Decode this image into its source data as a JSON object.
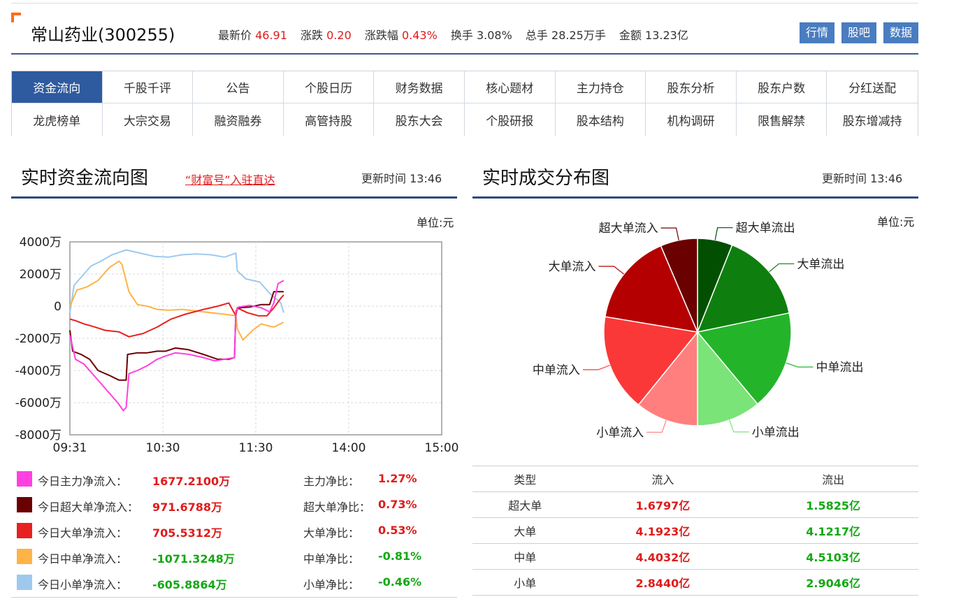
{
  "header": {
    "stock_name": "常山药业(300255)",
    "quotes": [
      {
        "label": "最新价",
        "value": "46.91",
        "color": "red"
      },
      {
        "label": "涨跌",
        "value": "0.20",
        "color": "red"
      },
      {
        "label": "涨跌幅",
        "value": "0.43%",
        "color": "red"
      },
      {
        "label": "换手",
        "value": "3.08%",
        "color": "plain"
      },
      {
        "label": "总手",
        "value": "28.25万手",
        "color": "plain"
      },
      {
        "label": "金额",
        "value": "13.23亿",
        "color": "plain"
      }
    ],
    "buttons": [
      "行情",
      "股吧",
      "数据"
    ]
  },
  "nav": {
    "items": [
      "资金流向",
      "千股千评",
      "公告",
      "个股日历",
      "财务数据",
      "核心题材",
      "主力持仓",
      "股东分析",
      "股东户数",
      "分红送配",
      "龙虎榜单",
      "大宗交易",
      "融资融券",
      "高管持股",
      "股东大会",
      "个股研报",
      "股本结构",
      "机构调研",
      "限售解禁",
      "股东增减持"
    ],
    "active_index": 0
  },
  "flow_section": {
    "title": "实时资金流向图",
    "link": "“财富号”入驻直达",
    "update_label": "更新时间",
    "update_time": "13:46",
    "unit": "单位:元"
  },
  "dist_section": {
    "title": "实时成交分布图",
    "update_label": "更新时间",
    "update_time": "13:46",
    "unit": "单位:元"
  },
  "colors": {
    "main": "#ff40e0",
    "super": "#6b0000",
    "large": "#e82020",
    "medium": "#ffb347",
    "small": "#9ec9ee"
  },
  "legend": [
    {
      "key": "main",
      "label": "今日主力净流入：",
      "value": "1677.2100万",
      "sign": "pos",
      "ratio_label": "主力净比：",
      "ratio": "1.27%"
    },
    {
      "key": "super",
      "label": "今日超大单净流入：",
      "value": "971.6788万",
      "sign": "pos",
      "ratio_label": "超大单净比：",
      "ratio": "0.73%"
    },
    {
      "key": "large",
      "label": "今日大单净流入：",
      "value": "705.5312万",
      "sign": "pos",
      "ratio_label": "大单净比：",
      "ratio": "0.53%"
    },
    {
      "key": "medium",
      "label": "今日中单净流入：",
      "value": "-1071.3248万",
      "sign": "neg",
      "ratio_label": "中单净比：",
      "ratio": "-0.81%"
    },
    {
      "key": "small",
      "label": "今日小单净流入：",
      "value": "-605.8864万",
      "sign": "neg",
      "ratio_label": "小单净比：",
      "ratio": "-0.46%"
    }
  ],
  "flow_table": {
    "headers": [
      "类型",
      "流入",
      "流出"
    ],
    "rows": [
      {
        "type": "超大单",
        "in": "1.6797亿",
        "out": "1.5825亿"
      },
      {
        "type": "大单",
        "in": "4.1923亿",
        "out": "4.1217亿"
      },
      {
        "type": "中单",
        "in": "4.4032亿",
        "out": "4.5103亿"
      },
      {
        "type": "小单",
        "in": "2.8440亿",
        "out": "2.9046亿"
      }
    ]
  },
  "chart_data": [
    {
      "type": "line",
      "title": "实时资金流向图",
      "ylabel": "单位:元",
      "ylim": [
        -8000,
        4000
      ],
      "y_ticks": [
        "4000万",
        "2000万",
        "0",
        "-2000万",
        "-4000万",
        "-6000万",
        "-8000万"
      ],
      "x_ticks": [
        "09:31",
        "10:30",
        "11:30",
        "14:00",
        "15:00"
      ],
      "y_unit": "万",
      "grid": true,
      "series": [
        {
          "key": "small",
          "values": [
            [
              0,
              -400
            ],
            [
              3,
              1300
            ],
            [
              8,
              1800
            ],
            [
              15,
              2500
            ],
            [
              22,
              2800
            ],
            [
              30,
              3200
            ],
            [
              40,
              3500
            ],
            [
              50,
              3300
            ],
            [
              60,
              3100
            ],
            [
              70,
              3050
            ],
            [
              80,
              3200
            ],
            [
              90,
              3250
            ],
            [
              100,
              3200
            ],
            [
              110,
              3050
            ],
            [
              118,
              3300
            ],
            [
              119,
              2200
            ],
            [
              125,
              1700
            ],
            [
              135,
              1500
            ],
            [
              142,
              800
            ],
            [
              150,
              200
            ],
            [
              152,
              -400
            ]
          ]
        },
        {
          "key": "medium",
          "values": [
            [
              0,
              0
            ],
            [
              5,
              1000
            ],
            [
              12,
              1200
            ],
            [
              20,
              1600
            ],
            [
              28,
              2400
            ],
            [
              35,
              2800
            ],
            [
              37,
              2600
            ],
            [
              42,
              900
            ],
            [
              48,
              100
            ],
            [
              55,
              0
            ],
            [
              62,
              -200
            ],
            [
              70,
              -250
            ],
            [
              80,
              -200
            ],
            [
              90,
              -300
            ],
            [
              100,
              -400
            ],
            [
              110,
              -500
            ],
            [
              118,
              -600
            ],
            [
              119,
              -1400
            ],
            [
              123,
              -2100
            ],
            [
              130,
              -1500
            ],
            [
              136,
              -1100
            ],
            [
              140,
              -1200
            ],
            [
              145,
              -1300
            ],
            [
              152,
              -1000
            ]
          ]
        },
        {
          "key": "large",
          "values": [
            [
              0,
              -800
            ],
            [
              4,
              -900
            ],
            [
              10,
              -1100
            ],
            [
              18,
              -1300
            ],
            [
              25,
              -1500
            ],
            [
              35,
              -1600
            ],
            [
              42,
              -1900
            ],
            [
              52,
              -1700
            ],
            [
              62,
              -1300
            ],
            [
              72,
              -800
            ],
            [
              82,
              -500
            ],
            [
              95,
              -200
            ],
            [
              105,
              0
            ],
            [
              113,
              200
            ],
            [
              118,
              -600
            ],
            [
              119,
              -100
            ],
            [
              126,
              -400
            ],
            [
              134,
              -600
            ],
            [
              140,
              -600
            ],
            [
              145,
              -100
            ],
            [
              150,
              500
            ],
            [
              152,
              700
            ]
          ]
        },
        {
          "key": "super",
          "values": [
            [
              0,
              -1500
            ],
            [
              2,
              -2800
            ],
            [
              8,
              -3000
            ],
            [
              14,
              -3300
            ],
            [
              20,
              -4000
            ],
            [
              28,
              -4300
            ],
            [
              35,
              -4600
            ],
            [
              40,
              -4600
            ],
            [
              41,
              -3000
            ],
            [
              48,
              -2900
            ],
            [
              55,
              -2900
            ],
            [
              62,
              -2800
            ],
            [
              68,
              -2800
            ],
            [
              75,
              -2600
            ],
            [
              84,
              -2700
            ],
            [
              95,
              -3000
            ],
            [
              105,
              -3300
            ],
            [
              113,
              -3300
            ],
            [
              117,
              -3200
            ],
            [
              118,
              -300
            ],
            [
              120,
              -100
            ],
            [
              128,
              -50
            ],
            [
              136,
              100
            ],
            [
              142,
              100
            ],
            [
              145,
              900
            ],
            [
              152,
              900
            ]
          ]
        },
        {
          "key": "main",
          "values": [
            [
              0,
              -1800
            ],
            [
              4,
              -3300
            ],
            [
              10,
              -3600
            ],
            [
              16,
              -4200
            ],
            [
              22,
              -4800
            ],
            [
              28,
              -5400
            ],
            [
              34,
              -6000
            ],
            [
              38,
              -6500
            ],
            [
              40,
              -6300
            ],
            [
              42,
              -4200
            ],
            [
              48,
              -4000
            ],
            [
              55,
              -3700
            ],
            [
              62,
              -3300
            ],
            [
              68,
              -3100
            ],
            [
              75,
              -2900
            ],
            [
              85,
              -3000
            ],
            [
              95,
              -3200
            ],
            [
              103,
              -3400
            ],
            [
              110,
              -3300
            ],
            [
              117,
              -3200
            ],
            [
              118,
              -300
            ],
            [
              120,
              -50
            ],
            [
              128,
              50
            ],
            [
              136,
              -100
            ],
            [
              142,
              -350
            ],
            [
              145,
              200
            ],
            [
              148,
              1400
            ],
            [
              152,
              1600
            ]
          ]
        }
      ]
    },
    {
      "type": "pie",
      "title": "实时成交分布图",
      "unit": "亿",
      "slices": [
        {
          "name": "超大单流出",
          "value": 1.5825,
          "color": "#024f02"
        },
        {
          "name": "大单流出",
          "value": 4.1217,
          "color": "#0e7f0e"
        },
        {
          "name": "中单流出",
          "value": 4.5103,
          "color": "#24b42a"
        },
        {
          "name": "小单流出",
          "value": 2.9046,
          "color": "#7ae478"
        },
        {
          "name": "小单流入",
          "value": 2.844,
          "color": "#ff7f7f"
        },
        {
          "name": "中单流入",
          "value": 4.4032,
          "color": "#fb3838"
        },
        {
          "name": "大单流入",
          "value": 4.1923,
          "color": "#b40000"
        },
        {
          "name": "超大单流入",
          "value": 1.6797,
          "color": "#6b0000"
        }
      ]
    }
  ]
}
